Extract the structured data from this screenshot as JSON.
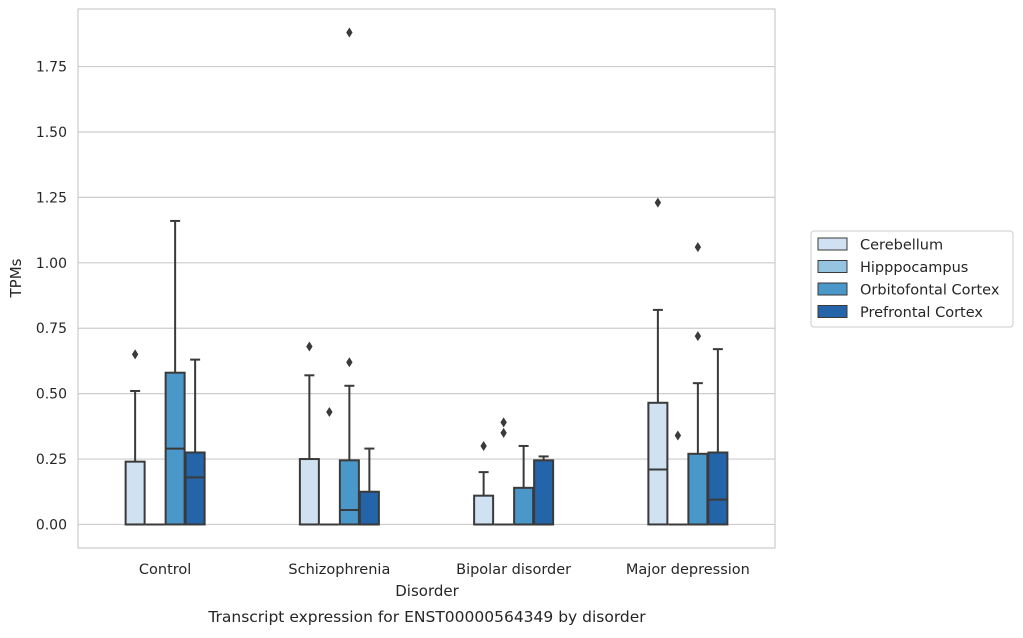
{
  "chart_data": {
    "type": "box",
    "title": "Transcript expression for ENST00000564349 by disorder",
    "xlabel": "Disorder",
    "ylabel": "TPMs",
    "ylim": [
      -0.09,
      1.97
    ],
    "yticks": [
      "0.00",
      "0.25",
      "0.50",
      "0.75",
      "1.00",
      "1.25",
      "1.50",
      "1.75"
    ],
    "grid": true,
    "legend_position": "right",
    "categories": [
      "Control",
      "Schizophrenia",
      "Bipolar disorder",
      "Major depression"
    ],
    "series": [
      {
        "name": "Cerebellum",
        "color": "#d0e1f2",
        "boxes": [
          {
            "min": 0.0,
            "q1": 0.0,
            "median": 0.0,
            "q3": 0.24,
            "max": 0.51,
            "outliers": [
              0.65
            ]
          },
          {
            "min": 0.0,
            "q1": 0.0,
            "median": 0.0,
            "q3": 0.25,
            "max": 0.57,
            "outliers": [
              0.68
            ]
          },
          {
            "min": 0.0,
            "q1": 0.0,
            "median": 0.0,
            "q3": 0.11,
            "max": 0.2,
            "outliers": [
              0.3
            ]
          },
          {
            "min": 0.0,
            "q1": 0.0,
            "median": 0.21,
            "q3": 0.465,
            "max": 0.82,
            "outliers": [
              1.23
            ]
          }
        ]
      },
      {
        "name": "Hipppocampus",
        "color": "#94c4df",
        "boxes": [
          {
            "min": 0.0,
            "q1": 0.0,
            "median": 0.0,
            "q3": 0.0,
            "max": 0.0,
            "outliers": []
          },
          {
            "min": 0.0,
            "q1": 0.0,
            "median": 0.0,
            "q3": 0.0,
            "max": 0.0,
            "outliers": [
              0.43
            ]
          },
          {
            "min": 0.0,
            "q1": 0.0,
            "median": 0.0,
            "q3": 0.0,
            "max": 0.0,
            "outliers": [
              0.35,
              0.39
            ]
          },
          {
            "min": 0.0,
            "q1": 0.0,
            "median": 0.0,
            "q3": 0.0,
            "max": 0.0,
            "outliers": [
              0.34
            ]
          }
        ]
      },
      {
        "name": "Orbitofontal Cortex",
        "color": "#4a98c9",
        "boxes": [
          {
            "min": 0.0,
            "q1": 0.0,
            "median": 0.29,
            "q3": 0.58,
            "max": 1.16,
            "outliers": []
          },
          {
            "min": 0.0,
            "q1": 0.0,
            "median": 0.055,
            "q3": 0.245,
            "max": 0.53,
            "outliers": [
              0.62,
              1.88
            ]
          },
          {
            "min": 0.0,
            "q1": 0.0,
            "median": 0.0,
            "q3": 0.14,
            "max": 0.3,
            "outliers": []
          },
          {
            "min": 0.0,
            "q1": 0.0,
            "median": 0.0,
            "q3": 0.27,
            "max": 0.54,
            "outliers": [
              0.72,
              1.06
            ]
          }
        ]
      },
      {
        "name": "Prefrontal Cortex",
        "color": "#2464a8",
        "boxes": [
          {
            "min": 0.0,
            "q1": 0.0,
            "median": 0.18,
            "q3": 0.275,
            "max": 0.63,
            "outliers": []
          },
          {
            "min": 0.0,
            "q1": 0.0,
            "median": 0.0,
            "q3": 0.125,
            "max": 0.29,
            "outliers": []
          },
          {
            "min": 0.0,
            "q1": 0.0,
            "median": 0.0,
            "q3": 0.245,
            "max": 0.26,
            "outliers": []
          },
          {
            "min": 0.0,
            "q1": 0.0,
            "median": 0.095,
            "q3": 0.275,
            "max": 0.67,
            "outliers": []
          }
        ]
      }
    ]
  }
}
